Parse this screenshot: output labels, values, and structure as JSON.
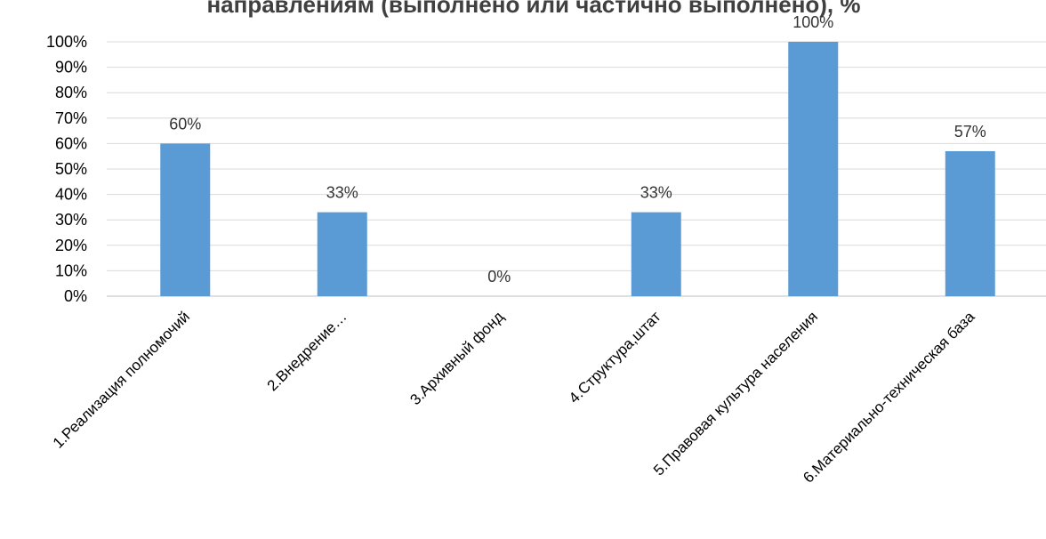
{
  "chart_data": {
    "type": "bar",
    "title": "направлениям (выполнено или частично выполнено), %",
    "categories": [
      "1.Реализация полномочий",
      "2.Внедрение…",
      "3.Архивный фонд",
      "4.Структура,штат",
      "5.Правовая культура населения",
      "6.Материально-техническая база"
    ],
    "values": [
      60,
      33,
      0,
      33,
      100,
      57
    ],
    "data_labels": [
      "60%",
      "33%",
      "0%",
      "33%",
      "100%",
      "57%"
    ],
    "ylim": [
      0,
      100
    ],
    "yticks": [
      0,
      10,
      20,
      30,
      40,
      50,
      60,
      70,
      80,
      90,
      100
    ],
    "ytick_labels": [
      "0%",
      "10%",
      "20%",
      "30%",
      "40%",
      "50%",
      "60%",
      "70%",
      "80%",
      "90%",
      "100%"
    ],
    "grid": true,
    "legend": "none",
    "bar_color": "#5b9bd5"
  }
}
